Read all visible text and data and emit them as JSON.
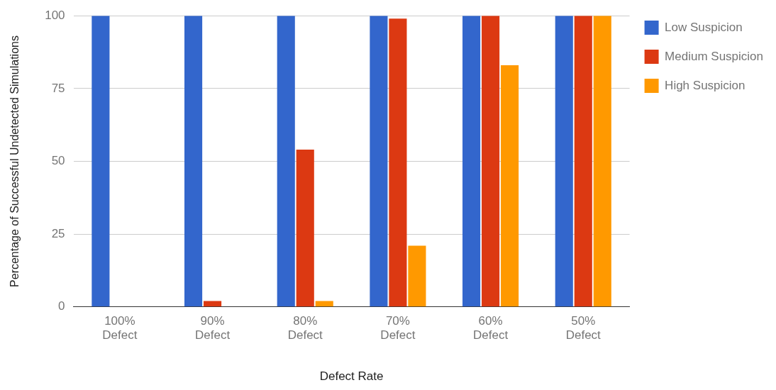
{
  "chart_data": {
    "type": "bar",
    "xlabel": "Defect Rate",
    "ylabel": "Percentage of Successful Undetected Simulations",
    "categories": [
      "100% Defect",
      "90% Defect",
      "80% Defect",
      "70% Defect",
      "60% Defect",
      "50% Defect"
    ],
    "series": [
      {
        "name": "Low Suspicion",
        "color": "#3366cc",
        "values": [
          100,
          100,
          100,
          100,
          100,
          100
        ]
      },
      {
        "name": "Medium Suspicion",
        "color": "#dc3912",
        "values": [
          0,
          2,
          54,
          99,
          100,
          100
        ]
      },
      {
        "name": "High Suspicion",
        "color": "#ff9900",
        "values": [
          0,
          0,
          2,
          21,
          83,
          100
        ]
      }
    ],
    "ylim": [
      0,
      100
    ],
    "yticks": [
      0,
      25,
      50,
      75,
      100
    ],
    "grid": "y",
    "legend": "top right"
  }
}
